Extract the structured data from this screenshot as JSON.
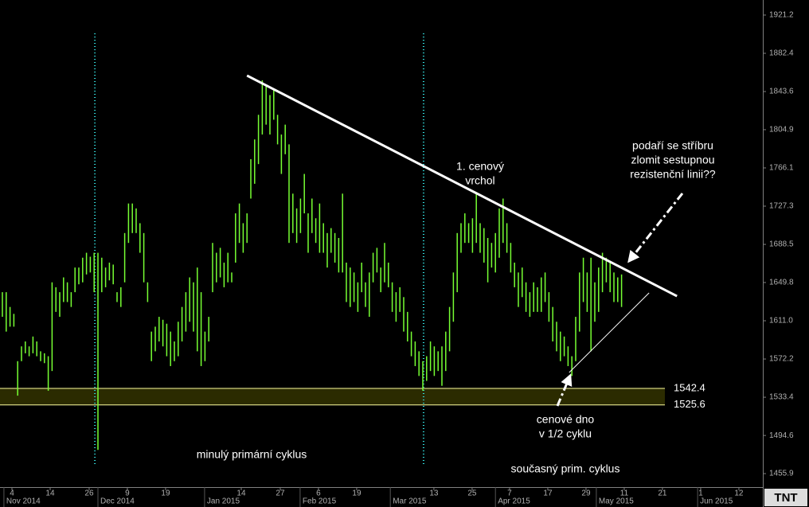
{
  "chart_data": {
    "type": "range-bar",
    "color": "#77ff33",
    "x": [
      0,
      1,
      2,
      3,
      4,
      5,
      6,
      7,
      8,
      9,
      10,
      11,
      12,
      13,
      14,
      15,
      16,
      17,
      18,
      19,
      20,
      21,
      22,
      23,
      24,
      25,
      26,
      27,
      28,
      29,
      30,
      31,
      32,
      33,
      34,
      35,
      36,
      37,
      38,
      39,
      40,
      41,
      42,
      43,
      44,
      45,
      46,
      47,
      48,
      49,
      50,
      51,
      52,
      53,
      54,
      55,
      56,
      57,
      58,
      59,
      60,
      61,
      62,
      63,
      64,
      65,
      66,
      67,
      68,
      69,
      70,
      71,
      72,
      73,
      74,
      75,
      76,
      77,
      78,
      79,
      80,
      81,
      82,
      83,
      84,
      85,
      86,
      87,
      88,
      89,
      90,
      91,
      92,
      93,
      94,
      95,
      96,
      97,
      98,
      99,
      100,
      101,
      102,
      103,
      104,
      105,
      106,
      107,
      108,
      109,
      110,
      111,
      112,
      113,
      114,
      115,
      116,
      117,
      118,
      119,
      120,
      121,
      122,
      123,
      124,
      125,
      126,
      127,
      128,
      129,
      130,
      131,
      132,
      133,
      134,
      135,
      136,
      137,
      138,
      139,
      140,
      141,
      142,
      143,
      144,
      145,
      146,
      147,
      148,
      149,
      150,
      151,
      152,
      153,
      154,
      155,
      156,
      157,
      158,
      159,
      160,
      161,
      162
    ],
    "high": [
      1640,
      1640,
      1625,
      1618,
      1570,
      1585,
      1590,
      1585,
      1595,
      1590,
      1580,
      1578,
      1575,
      1650,
      1645,
      1640,
      1655,
      1650,
      1640,
      1665,
      1665,
      1675,
      1680,
      1676,
      1680,
      1680,
      1675,
      1665,
      1670,
      1668,
      1640,
      1645,
      1700,
      1730,
      1730,
      1725,
      1710,
      1700,
      1650,
      1600,
      1605,
      1615,
      1612,
      1608,
      1600,
      1590,
      1610,
      1625,
      1640,
      1655,
      1650,
      1665,
      1640,
      1600,
      1615,
      1690,
      1680,
      1685,
      1670,
      1680,
      1660,
      1720,
      1730,
      1710,
      1720,
      1775,
      1795,
      1820,
      1855,
      1850,
      1840,
      1845,
      1820,
      1800,
      1810,
      1790,
      1740,
      1725,
      1735,
      1760,
      1720,
      1735,
      1715,
      1730,
      1710,
      1700,
      1705,
      1700,
      1695,
      1740,
      1670,
      1665,
      1660,
      1650,
      1670,
      1650,
      1660,
      1680,
      1685,
      1665,
      1690,
      1670,
      1650,
      1640,
      1645,
      1635,
      1620,
      1600,
      1590,
      1580,
      1570,
      1575,
      1590,
      1585,
      1580,
      1585,
      1600,
      1625,
      1660,
      1700,
      1710,
      1720,
      1710,
      1715,
      1740,
      1710,
      1705,
      1695,
      1690,
      1700,
      1725,
      1735,
      1710,
      1690,
      1670,
      1660,
      1665,
      1650,
      1640,
      1650,
      1645,
      1655,
      1660,
      1640,
      1625,
      1610,
      1600,
      1595,
      1585,
      1575,
      1615,
      1660,
      1675,
      1660,
      1675,
      1650,
      1665,
      1680,
      1675,
      1670,
      1660,
      1655,
      1658
    ],
    "low": [
      1615,
      1600,
      1605,
      1605,
      1535,
      1570,
      1578,
      1575,
      1578,
      1575,
      1570,
      1568,
      1540,
      1560,
      1620,
      1615,
      1630,
      1630,
      1625,
      1640,
      1648,
      1650,
      1658,
      1660,
      1640,
      1480,
      1640,
      1645,
      1652,
      1648,
      1630,
      1625,
      1650,
      1690,
      1700,
      1700,
      1680,
      1650,
      1630,
      1570,
      1580,
      1590,
      1585,
      1575,
      1565,
      1570,
      1575,
      1590,
      1600,
      1610,
      1600,
      1580,
      1565,
      1570,
      1590,
      1640,
      1650,
      1655,
      1645,
      1650,
      1650,
      1670,
      1690,
      1680,
      1690,
      1735,
      1750,
      1770,
      1800,
      1810,
      1800,
      1815,
      1790,
      1760,
      1780,
      1690,
      1700,
      1690,
      1700,
      1720,
      1680,
      1700,
      1690,
      1680,
      1680,
      1665,
      1680,
      1670,
      1660,
      1660,
      1630,
      1625,
      1630,
      1620,
      1640,
      1625,
      1615,
      1650,
      1660,
      1640,
      1650,
      1645,
      1620,
      1610,
      1620,
      1600,
      1590,
      1575,
      1565,
      1555,
      1540,
      1550,
      1560,
      1555,
      1560,
      1545,
      1560,
      1580,
      1610,
      1640,
      1680,
      1690,
      1690,
      1680,
      1690,
      1680,
      1670,
      1650,
      1665,
      1660,
      1675,
      1690,
      1680,
      1660,
      1645,
      1625,
      1635,
      1620,
      1615,
      1620,
      1620,
      1620,
      1630,
      1610,
      1590,
      1580,
      1570,
      1575,
      1565,
      1555,
      1570,
      1600,
      1630,
      1620,
      1580,
      1610,
      1620,
      1640,
      1650,
      1640,
      1630,
      1630,
      1625
    ],
    "xlim": [
      -0.625,
      198.96
    ],
    "ylim": [
      1442.2,
      1936.5
    ],
    "yticks": [
      1921.2,
      1882.4,
      1843.6,
      1804.9,
      1766.1,
      1727.3,
      1688.5,
      1649.8,
      {
        "value": 1611,
        "label": "1611.0"
      },
      1572.2,
      1533.4,
      1494.6,
      1455.9
    ],
    "xticks": [
      {
        "value": 2.5,
        "label": "4"
      },
      {
        "value": 12.5,
        "label": "14"
      },
      {
        "value": 22.7,
        "label": "26"
      },
      {
        "value": 32.7,
        "label": "9"
      },
      {
        "value": 42.7,
        "label": "19"
      },
      {
        "value": 62.5,
        "label": "14"
      },
      {
        "value": 72.7,
        "label": "27"
      },
      {
        "value": 82.7,
        "label": "6"
      },
      {
        "value": 92.7,
        "label": "19"
      },
      {
        "value": 112.9,
        "label": "13"
      },
      {
        "value": 122.9,
        "label": "25"
      },
      {
        "value": 132.7,
        "label": "7"
      },
      {
        "value": 142.7,
        "label": "17"
      },
      {
        "value": 152.7,
        "label": "29"
      },
      {
        "value": 162.7,
        "label": "11"
      },
      {
        "value": 172.7,
        "label": "21"
      },
      {
        "value": 182.7,
        "label": "1"
      },
      {
        "value": 192.7,
        "label": "12"
      }
    ],
    "months": [
      {
        "value": 0.4,
        "label": "Nov 2014"
      },
      {
        "value": 25,
        "label": "Dec 2014"
      },
      {
        "value": 52.9,
        "label": "Jan 2015"
      },
      {
        "value": 77.9,
        "label": "Feb 2015"
      },
      {
        "value": 101.5,
        "label": "Mar 2015"
      },
      {
        "value": 129,
        "label": "Apr 2015"
      },
      {
        "value": 155.4,
        "label": "May 2015"
      },
      {
        "value": 181.9,
        "label": "Jun 2015"
      }
    ],
    "cycle_lows": [
      24.2,
      110.2
    ],
    "levels": [
      1542.4,
      1525.6
    ],
    "resistance_line": {
      "x": [
        64,
        176.5
      ],
      "y": [
        1859.8,
        1636.0
      ]
    },
    "support_line": {
      "x": [
        148.3,
        169.2
      ],
      "y": [
        1558.5,
        1639.3
      ]
    },
    "annotations": {
      "peak": [
        "1. cenový",
        "vrchol"
      ],
      "question": [
        "podaří se stříbru",
        "zlomit sestupnou",
        "rezistenční linii??"
      ],
      "bottom": [
        "cenové dno",
        "v 1/2 cyklu"
      ],
      "previous_cycle": "minulý primární cyklus",
      "current_cycle": "současný prim. cyklus"
    },
    "logo": "TNT"
  }
}
